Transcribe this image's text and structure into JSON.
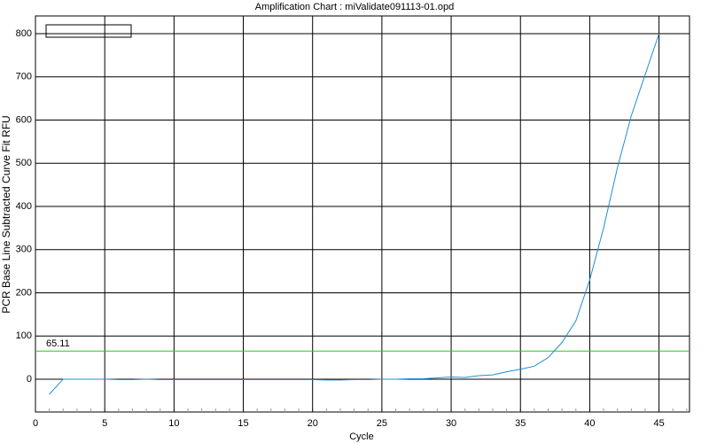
{
  "chart_data": {
    "type": "line",
    "title": "Amplification Chart : miValidate091113-01.opd",
    "x_label": "Cycle",
    "y_label": "PCR Base Line Subtracted Curve Fit RFU",
    "x": [
      1,
      2,
      3,
      4,
      5,
      6,
      7,
      8,
      9,
      10,
      11,
      12,
      13,
      14,
      15,
      16,
      17,
      18,
      19,
      20,
      21,
      22,
      23,
      24,
      25,
      26,
      27,
      28,
      29,
      30,
      31,
      32,
      33,
      34,
      35,
      36,
      37,
      38,
      39,
      40,
      41,
      42,
      43,
      44,
      45
    ],
    "series": [
      {
        "color": "#1e8fd6",
        "values": [
          -35,
          0,
          0,
          0,
          0,
          -1,
          -1,
          0,
          -1,
          -1,
          -1,
          -1,
          -1,
          -1,
          -1,
          -1,
          -1,
          -1,
          -1,
          -1,
          -2,
          -2,
          -1,
          -1,
          0,
          0,
          1,
          1,
          3,
          5,
          4,
          8,
          10,
          17,
          23,
          30,
          50,
          85,
          135,
          230,
          350,
          490,
          610,
          705,
          800
        ]
      }
    ],
    "threshold": {
      "value": 65.11,
      "label": "65.11",
      "color": "#22cc22"
    },
    "xlim": [
      0,
      47.2
    ],
    "xticks": [
      0,
      5,
      10,
      15,
      20,
      25,
      30,
      35,
      40,
      45
    ],
    "ylim": [
      -76,
      841
    ],
    "yticks": [
      0,
      100,
      200,
      300,
      400,
      500,
      600,
      700,
      800
    ],
    "grid": true
  }
}
